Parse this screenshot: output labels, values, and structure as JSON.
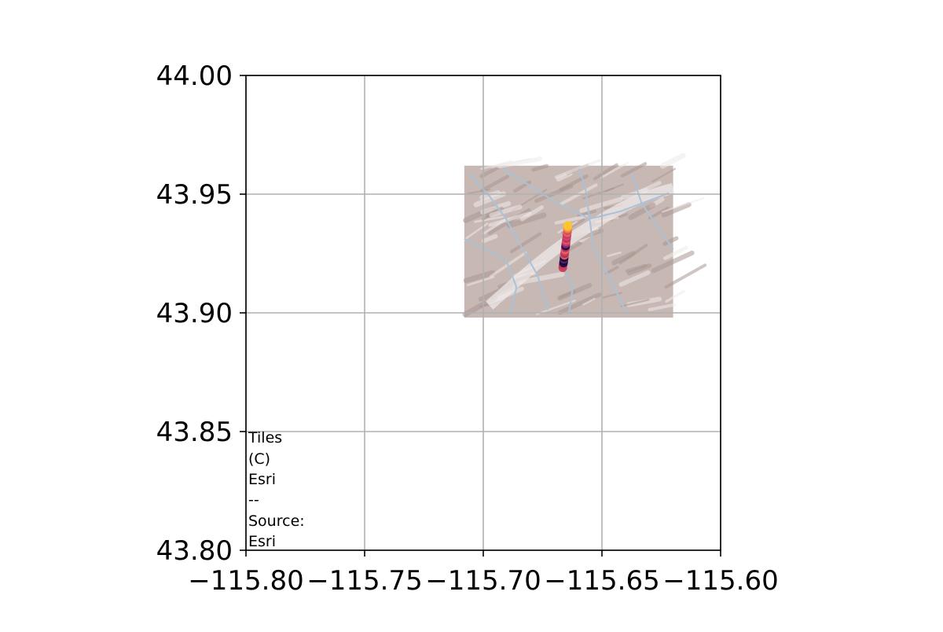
{
  "chart_data": {
    "type": "scatter",
    "title": "",
    "xlabel": "",
    "ylabel": "",
    "xlim": [
      -115.8,
      -115.6
    ],
    "ylim": [
      43.8,
      44.0
    ],
    "grid": true,
    "x_ticks": [
      -115.8,
      -115.75,
      -115.7,
      -115.65,
      -115.6
    ],
    "y_ticks": [
      43.8,
      43.85,
      43.9,
      43.95,
      44.0
    ],
    "x_tick_labels": [
      "−115.80",
      "−115.75",
      "−115.70",
      "−115.65",
      "−115.60"
    ],
    "y_tick_labels": [
      "43.80",
      "43.85",
      "43.90",
      "43.95",
      "44.00"
    ],
    "basemap": {
      "type": "shaded-relief tiles",
      "extent": {
        "lon": [
          -115.708,
          -115.62
        ],
        "lat": [
          43.898,
          43.962
        ]
      },
      "colors": {
        "terrain": "#c8b8b4",
        "shadow": "#a89590",
        "highlight": "#eeeaea",
        "rivers": "#a9c2d8"
      }
    },
    "attribution": [
      "Tiles",
      "(C)",
      "Esri",
      "--",
      "Source:",
      "Esri"
    ],
    "points": [
      {
        "x": -115.6665,
        "y": 43.919,
        "color": "#d1415a"
      },
      {
        "x": -115.6664,
        "y": 43.92,
        "color": "#c43a5e"
      },
      {
        "x": -115.6662,
        "y": 43.921,
        "color": "#2a0f45"
      },
      {
        "x": -115.6661,
        "y": 43.9218,
        "color": "#1a0b36"
      },
      {
        "x": -115.666,
        "y": 43.9226,
        "color": "#5c1f6e"
      },
      {
        "x": -115.6659,
        "y": 43.9234,
        "color": "#0d0a29"
      },
      {
        "x": -115.6658,
        "y": 43.9242,
        "color": "#e05457"
      },
      {
        "x": -115.6657,
        "y": 43.925,
        "color": "#a5306c"
      },
      {
        "x": -115.6656,
        "y": 43.9258,
        "color": "#d1415a"
      },
      {
        "x": -115.6655,
        "y": 43.9266,
        "color": "#e8625e"
      },
      {
        "x": -115.6654,
        "y": 43.9274,
        "color": "#b8346a"
      },
      {
        "x": -115.6653,
        "y": 43.9282,
        "color": "#1c0c3b"
      },
      {
        "x": -115.6652,
        "y": 43.929,
        "color": "#7d2472"
      },
      {
        "x": -115.6651,
        "y": 43.9298,
        "color": "#c83b64"
      },
      {
        "x": -115.665,
        "y": 43.9306,
        "color": "#e24f5f"
      },
      {
        "x": -115.6649,
        "y": 43.9314,
        "color": "#b03469"
      },
      {
        "x": -115.6648,
        "y": 43.9322,
        "color": "#d9465e"
      },
      {
        "x": -115.6647,
        "y": 43.933,
        "color": "#c23b64"
      },
      {
        "x": -115.6646,
        "y": 43.9338,
        "color": "#e8625e"
      },
      {
        "x": -115.6645,
        "y": 43.9346,
        "color": "#d44a5e"
      },
      {
        "x": -115.6645,
        "y": 43.9354,
        "color": "#f07f4c"
      },
      {
        "x": -115.6644,
        "y": 43.9362,
        "color": "#f9b530"
      },
      {
        "x": -115.6644,
        "y": 43.9368,
        "color": "#fcc52c"
      }
    ]
  }
}
